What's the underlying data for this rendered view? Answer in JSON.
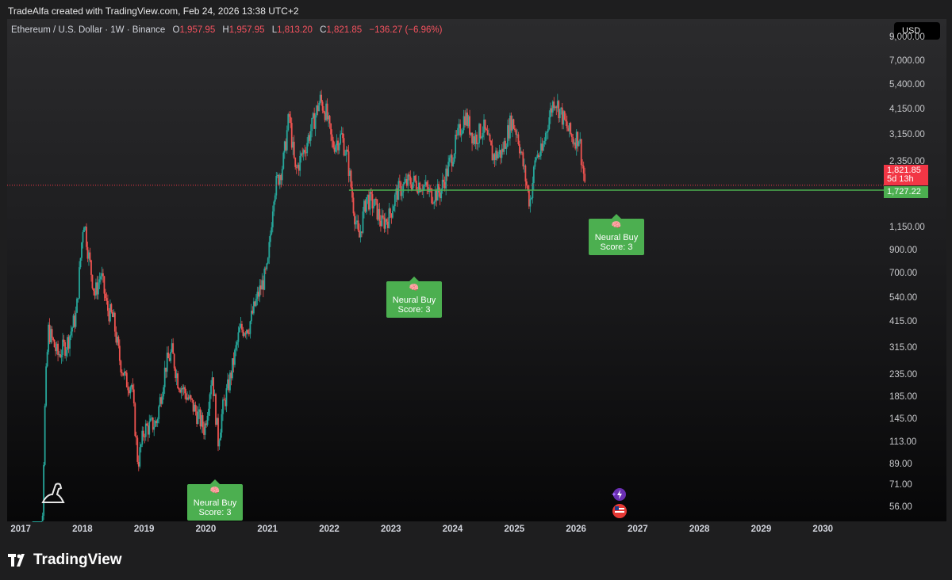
{
  "header": {
    "credit": "TradeAlfa created with TradingView.com, Feb 24, 2026 13:38 UTC+2"
  },
  "legend": {
    "symbol": "Ethereum / U.S. Dollar · 1W · Binance",
    "o_label": "O",
    "o_value": "1,957.95",
    "h_label": "H",
    "h_value": "1,957.95",
    "l_label": "L",
    "l_value": "1,813.20",
    "c_label": "C",
    "c_value": "1,821.85",
    "change": "−136.27 (−6.96%)"
  },
  "currency_button": "USD",
  "price_tags": {
    "current_price": "1,821.85",
    "countdown": "5d 13h",
    "support_level": "1,727.22"
  },
  "signals": [
    {
      "label": "Neural Buy",
      "score": "Score: 3",
      "brain_icon": "brain-icon"
    },
    {
      "label": "Neural Buy",
      "score": "Score: 3",
      "brain_icon": "brain-icon"
    },
    {
      "label": "Neural Buy",
      "score": "Score: 3",
      "brain_icon": "brain-icon"
    }
  ],
  "footer": {
    "brand": "TradingView"
  },
  "colors": {
    "up": "#26a69a",
    "down": "#ef5350",
    "support_line": "#4caf50",
    "price_line": "#f23645",
    "signal_bg": "#4caf50"
  },
  "chart_data": {
    "type": "candlestick",
    "title": "Ethereum / U.S. Dollar · 1W · Binance",
    "scale": "log",
    "ylim": [
      48,
      11000
    ],
    "y_ticks": [
      "9,000.00",
      "7,000.00",
      "5,400.00",
      "4,150.00",
      "3,150.00",
      "2,350.00",
      "1,150.00",
      "900.00",
      "700.00",
      "540.00",
      "415.00",
      "315.00",
      "235.00",
      "185.00",
      "145.00",
      "113.00",
      "89.00",
      "71.00",
      "56.00"
    ],
    "y_tick_values": [
      9000,
      7000,
      5400,
      4150,
      3150,
      2350,
      1150,
      900,
      700,
      540,
      415,
      315,
      235,
      185,
      145,
      113,
      89,
      71,
      56
    ],
    "x_ticks": [
      "2017",
      "2018",
      "2019",
      "2020",
      "2021",
      "2022",
      "2023",
      "2024",
      "2025",
      "2026",
      "2027",
      "2028",
      "2029",
      "2030"
    ],
    "x_tick_values": [
      2017,
      2018,
      2019,
      2020,
      2021,
      2022,
      2023,
      2024,
      2025,
      2026,
      2027,
      2028,
      2029,
      2030
    ],
    "xlim": [
      2016.78,
      2031.0
    ],
    "current_price": 1821.85,
    "support_level": 1727.22,
    "support_start": 2022.32,
    "price_path": [
      [
        2017.2,
        8
      ],
      [
        2017.35,
        50
      ],
      [
        2017.4,
        200
      ],
      [
        2017.45,
        380
      ],
      [
        2017.6,
        290
      ],
      [
        2017.75,
        330
      ],
      [
        2017.9,
        450
      ],
      [
        2018.02,
        1300
      ],
      [
        2018.1,
        850
      ],
      [
        2018.2,
        560
      ],
      [
        2018.3,
        700
      ],
      [
        2018.4,
        480
      ],
      [
        2018.5,
        430
      ],
      [
        2018.6,
        280
      ],
      [
        2018.7,
        220
      ],
      [
        2018.8,
        210
      ],
      [
        2018.9,
        90
      ],
      [
        2019.0,
        130
      ],
      [
        2019.2,
        140
      ],
      [
        2019.35,
        260
      ],
      [
        2019.45,
        300
      ],
      [
        2019.55,
        220
      ],
      [
        2019.7,
        185
      ],
      [
        2019.85,
        155
      ],
      [
        2019.98,
        130
      ],
      [
        2020.1,
        240
      ],
      [
        2020.2,
        115
      ],
      [
        2020.27,
        160
      ],
      [
        2020.4,
        230
      ],
      [
        2020.55,
        380
      ],
      [
        2020.7,
        400
      ],
      [
        2020.85,
        560
      ],
      [
        2021.0,
        730
      ],
      [
        2021.1,
        1700
      ],
      [
        2021.25,
        2300
      ],
      [
        2021.35,
        3900
      ],
      [
        2021.45,
        2100
      ],
      [
        2021.6,
        2700
      ],
      [
        2021.7,
        3300
      ],
      [
        2021.85,
        4600
      ],
      [
        2021.95,
        4000
      ],
      [
        2022.05,
        2800
      ],
      [
        2022.2,
        3100
      ],
      [
        2022.3,
        2400
      ],
      [
        2022.4,
        1400
      ],
      [
        2022.48,
        1000
      ],
      [
        2022.6,
        1600
      ],
      [
        2022.75,
        1450
      ],
      [
        2022.85,
        1200
      ],
      [
        2022.97,
        1300
      ],
      [
        2023.1,
        1700
      ],
      [
        2023.3,
        1900
      ],
      [
        2023.5,
        1850
      ],
      [
        2023.65,
        1650
      ],
      [
        2023.8,
        1700
      ],
      [
        2023.95,
        2300
      ],
      [
        2024.1,
        3200
      ],
      [
        2024.2,
        3900
      ],
      [
        2024.35,
        3000
      ],
      [
        2024.5,
        3400
      ],
      [
        2024.65,
        2500
      ],
      [
        2024.8,
        2600
      ],
      [
        2024.95,
        3700
      ],
      [
        2025.05,
        3200
      ],
      [
        2025.15,
        2200
      ],
      [
        2025.25,
        1500
      ],
      [
        2025.35,
        2500
      ],
      [
        2025.45,
        2600
      ],
      [
        2025.55,
        3700
      ],
      [
        2025.65,
        4700
      ],
      [
        2025.75,
        4000
      ],
      [
        2025.85,
        3400
      ],
      [
        2025.95,
        3000
      ],
      [
        2026.05,
        3100
      ],
      [
        2026.1,
        2300
      ],
      [
        2026.15,
        1821.85
      ]
    ],
    "signals": [
      {
        "x": 2018.92,
        "price": 85,
        "label": "Neural Buy Score: 3"
      },
      {
        "x": 2022.45,
        "price": 700,
        "label": "Neural Buy Score: 3"
      },
      {
        "x": 2026.07,
        "price": 1500,
        "label": "Neural Buy Score: 3"
      }
    ]
  }
}
